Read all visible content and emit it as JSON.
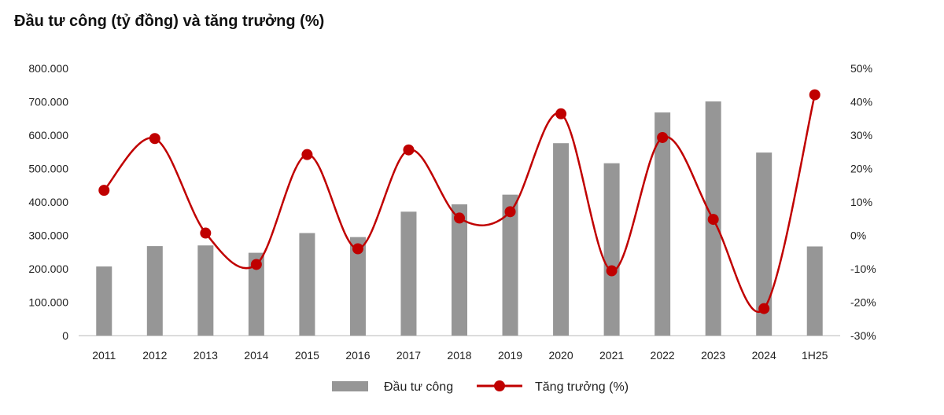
{
  "chart_data": {
    "type": "bar",
    "title": "Đầu tư công (tỷ đồng) và tăng trưởng (%)",
    "categories": [
      "2011",
      "2012",
      "2013",
      "2014",
      "2015",
      "2016",
      "2017",
      "2018",
      "2019",
      "2020",
      "2021",
      "2022",
      "2023",
      "2024",
      "1H25"
    ],
    "series": [
      {
        "name": "Đầu tư công",
        "type": "bar",
        "axis": "left",
        "color": "#969696",
        "values": [
          207000,
          268000,
          270000,
          248000,
          307000,
          295000,
          371000,
          393000,
          422000,
          576000,
          516000,
          668000,
          701000,
          548000,
          267000
        ]
      },
      {
        "name": "Tăng trưởng (%)",
        "type": "line",
        "axis": "right",
        "color": "#c00000",
        "values": [
          13.5,
          29.0,
          0.7,
          -8.7,
          24.2,
          -4.0,
          25.6,
          5.2,
          7.1,
          36.4,
          -10.6,
          29.3,
          4.8,
          -21.9,
          42.1
        ]
      }
    ],
    "y_left": {
      "lim": [
        0,
        800000
      ],
      "ticks": [
        0,
        100000,
        200000,
        300000,
        400000,
        500000,
        600000,
        700000,
        800000
      ],
      "tick_labels": [
        "0",
        "100.000",
        "200.000",
        "300.000",
        "400.000",
        "500.000",
        "600.000",
        "700.000",
        "800.000"
      ]
    },
    "y_right": {
      "lim": [
        -30,
        50
      ],
      "ticks": [
        -30,
        -20,
        -10,
        0,
        10,
        20,
        30,
        40,
        50
      ],
      "tick_labels": [
        "-30%",
        "-20%",
        "-10%",
        "0%",
        "10%",
        "20%",
        "30%",
        "40%",
        "50%"
      ]
    },
    "grid": false,
    "legend_position": "bottom"
  }
}
